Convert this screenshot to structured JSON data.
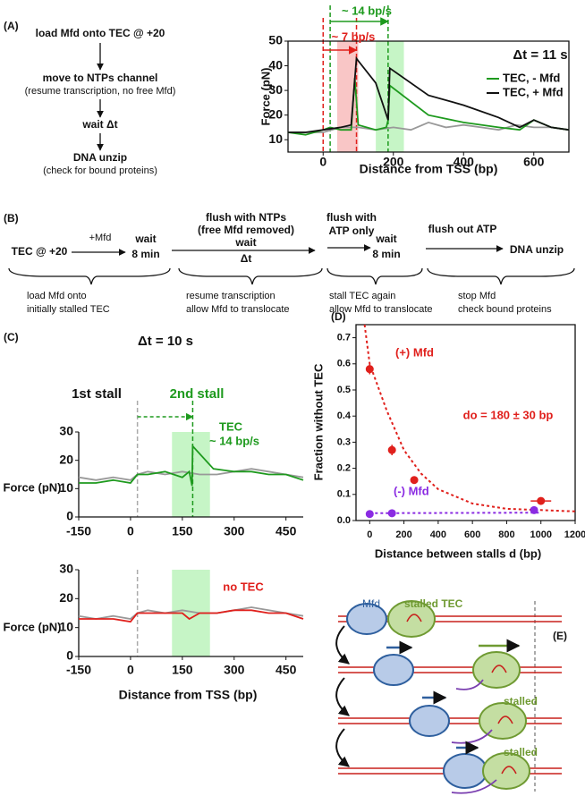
{
  "panel_labels": [
    "(A)",
    "(B)",
    "(C)",
    "(D)",
    "(E)"
  ],
  "flow_a": {
    "steps": [
      "load Mfd onto TEC @ +20",
      "move to NTPs channel",
      "wait Δt",
      "DNA unzip"
    ],
    "notes": [
      "(resume transcription, no free Mfd)",
      "(check for bound proteins)"
    ]
  },
  "timeline_b": {
    "start": "TEC @ +20",
    "add": "+Mfd",
    "wait1": [
      "wait",
      "8 min"
    ],
    "flush1": [
      "flush with NTPs",
      "(free Mfd removed)"
    ],
    "wait2": [
      "wait",
      "Δt"
    ],
    "flush2": [
      "flush with",
      "ATP only"
    ],
    "wait3": [
      "wait",
      "8 min"
    ],
    "flush3": "flush out ATP",
    "end": "DNA unzip",
    "phases": [
      [
        "load Mfd onto",
        "initially stalled TEC"
      ],
      [
        "resume transcription",
        "allow Mfd to translocate"
      ],
      [
        "stall TEC again",
        "allow Mfd to translocate"
      ],
      [
        "stop Mfd",
        "check bound proteins"
      ]
    ]
  },
  "diagram_e": {
    "labels": [
      "Mfd",
      "stalled TEC",
      "stalled",
      "stalled"
    ]
  },
  "chart_data": [
    {
      "type": "line",
      "title": "Δt = 11 s",
      "xlabel": "Distance from TSS (bp)",
      "ylabel": "Force (pN)",
      "xlim": [
        -100,
        700
      ],
      "xticks": [
        0,
        200,
        400,
        600
      ],
      "ylim": [
        5,
        50
      ],
      "yticks": [
        10,
        20,
        30,
        40,
        50
      ],
      "annotations": [
        {
          "text": "~ 14 bp/s",
          "color": "#1e9a1e"
        },
        {
          "text": "~ 7 bp/s",
          "color": "#e0201c"
        }
      ],
      "bands": [
        {
          "x": [
            40,
            100
          ],
          "color": "#f9c6c6"
        },
        {
          "x": [
            150,
            230
          ],
          "color": "#c6f5c6"
        }
      ],
      "vlines": [
        {
          "x": 0,
          "color": "#e0201c"
        },
        {
          "x": 20,
          "color": "#1e9a1e"
        },
        {
          "x": 95,
          "color": "#e0201c"
        },
        {
          "x": 185,
          "color": "#1e9a1e"
        }
      ],
      "series": [
        {
          "color": "#999999",
          "x": [
            -100,
            -50,
            0,
            50,
            100,
            150,
            200,
            250,
            300,
            350,
            400,
            450,
            500,
            550,
            600,
            650,
            700
          ],
          "values": [
            13,
            13,
            13,
            15,
            15,
            14,
            15,
            14,
            17,
            15,
            16,
            15,
            14,
            16,
            15,
            15,
            14
          ]
        },
        {
          "name": "TEC, - Mfd",
          "color": "#1e9a1e",
          "x": [
            -100,
            -50,
            0,
            20,
            50,
            80,
            90,
            100,
            150,
            180,
            185,
            190,
            300,
            400,
            500,
            560,
            600,
            650,
            700
          ],
          "values": [
            13,
            12,
            14,
            15,
            14,
            14,
            35,
            16,
            14,
            15,
            18,
            32,
            20,
            17,
            15,
            14,
            18,
            15,
            14
          ]
        },
        {
          "name": "TEC, + Mfd",
          "color": "#111111",
          "x": [
            -100,
            -50,
            0,
            50,
            80,
            95,
            100,
            150,
            185,
            190,
            300,
            400,
            500,
            560,
            600,
            650,
            700
          ],
          "values": [
            13,
            13,
            14,
            15,
            16,
            43,
            42,
            33,
            18,
            39,
            28,
            24,
            19,
            15,
            18,
            15,
            14
          ]
        }
      ]
    },
    {
      "type": "line",
      "title": "Δt = 10 s",
      "ylabel": "Force (pN)",
      "xlim": [
        -150,
        500
      ],
      "xticks": [
        -150,
        0,
        150,
        300,
        450
      ],
      "ylim": [
        0,
        30
      ],
      "yticks": [
        0,
        10,
        20,
        30
      ],
      "annotations": [
        {
          "text": "1st stall",
          "color": "#111111"
        },
        {
          "text": "2nd stall",
          "color": "#1e9a1e"
        },
        {
          "text": "TEC",
          "color": "#1e9a1e"
        },
        {
          "text": "~ 14 bp/s",
          "color": "#1e9a1e"
        }
      ],
      "bands": [
        {
          "x": [
            120,
            230
          ],
          "color": "#c6f5c6"
        }
      ],
      "vlines": [
        {
          "x": 20,
          "color": "#aaaaaa"
        },
        {
          "x": 180,
          "color": "#1e9a1e"
        }
      ],
      "series": [
        {
          "color": "#999999",
          "x": [
            -150,
            -100,
            -50,
            0,
            20,
            50,
            100,
            150,
            200,
            250,
            300,
            350,
            400,
            450,
            500
          ],
          "values": [
            14,
            13,
            14,
            13,
            15,
            16,
            15,
            16,
            15,
            15,
            16,
            17,
            16,
            15,
            14
          ]
        },
        {
          "color": "#1e9a1e",
          "x": [
            -150,
            -100,
            -50,
            0,
            20,
            50,
            100,
            150,
            170,
            178,
            180,
            240,
            300,
            350,
            400,
            450,
            500
          ],
          "values": [
            12,
            12,
            13,
            12,
            15,
            15,
            16,
            14,
            16,
            11,
            25,
            17,
            16,
            16,
            15,
            15,
            13
          ]
        }
      ]
    },
    {
      "type": "line",
      "xlabel": "Distance from TSS (bp)",
      "ylabel": "Force (pN)",
      "xlim": [
        -150,
        500
      ],
      "xticks": [
        -150,
        0,
        150,
        300,
        450
      ],
      "ylim": [
        0,
        30
      ],
      "yticks": [
        0,
        10,
        20,
        30
      ],
      "annotations": [
        {
          "text": "no TEC",
          "color": "#e0201c"
        }
      ],
      "bands": [
        {
          "x": [
            120,
            230
          ],
          "color": "#c6f5c6"
        }
      ],
      "vlines": [
        {
          "x": 20,
          "color": "#aaaaaa"
        }
      ],
      "series": [
        {
          "color": "#999999",
          "x": [
            -150,
            -100,
            -50,
            0,
            20,
            50,
            100,
            150,
            200,
            250,
            300,
            350,
            400,
            450,
            500
          ],
          "values": [
            14,
            13,
            14,
            13,
            15,
            16,
            15,
            16,
            15,
            15,
            16,
            17,
            16,
            15,
            14
          ]
        },
        {
          "color": "#e0201c",
          "x": [
            -150,
            -100,
            -50,
            0,
            20,
            50,
            100,
            150,
            170,
            200,
            250,
            300,
            350,
            400,
            450,
            500
          ],
          "values": [
            13,
            13,
            13,
            12,
            15,
            15,
            15,
            15,
            13,
            15,
            15,
            16,
            16,
            15,
            15,
            13
          ]
        }
      ]
    },
    {
      "type": "scatter",
      "xlabel": "Distance between stalls d (bp)",
      "ylabel": "Fraction without TEC",
      "xlim": [
        -80,
        1200
      ],
      "xticks": [
        0,
        200,
        400,
        600,
        800,
        1000,
        1200
      ],
      "ylim": [
        0,
        0.75
      ],
      "yticks": [
        {
          "value": 0,
          "label": "0.0"
        },
        0.1,
        0.2,
        0.3,
        0.4,
        0.5,
        0.6,
        0.7
      ],
      "annotations": [
        {
          "text": "do = 180 ± 30 bp",
          "color": "#e0201c"
        }
      ],
      "series": [
        {
          "name": "(+) Mfd",
          "color": "#e0201c",
          "x": [
            0,
            130,
            260,
            1000
          ],
          "values": [
            0.58,
            0.27,
            0.155,
            0.075
          ],
          "yerr": [
            0.02,
            0.02,
            0.012,
            0.01
          ],
          "xerr": [
            null,
            null,
            null,
            60
          ]
        },
        {
          "name": "(-) Mfd",
          "color": "#8a2be2",
          "x": [
            0,
            130,
            960
          ],
          "values": [
            0.025,
            0.028,
            0.04
          ]
        }
      ],
      "fits": [
        {
          "color": "#e0201c",
          "x": [
            -30,
            0,
            100,
            200,
            300,
            400,
            600,
            800,
            1000,
            1200
          ],
          "values": [
            0.75,
            0.6,
            0.42,
            0.27,
            0.18,
            0.12,
            0.065,
            0.045,
            0.04,
            0.035
          ]
        },
        {
          "color": "#8a2be2",
          "x": [
            0,
            1000
          ],
          "values": [
            0.028,
            0.03
          ]
        }
      ]
    }
  ]
}
